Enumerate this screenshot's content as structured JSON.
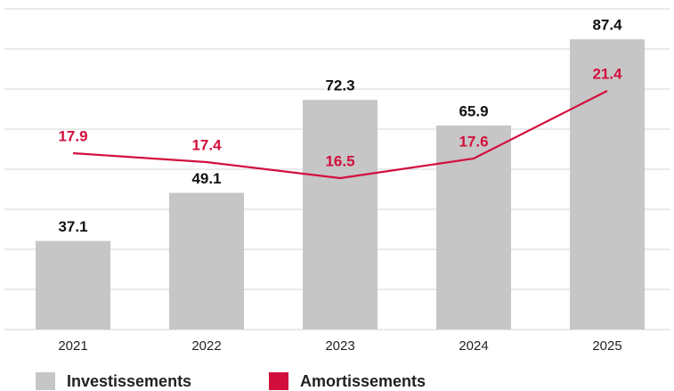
{
  "chart_data": {
    "type": "bar",
    "categories": [
      "2021",
      "2022",
      "2023",
      "2024",
      "2025"
    ],
    "series": [
      {
        "name": "Investissements",
        "type": "bar",
        "color": "#c6c6c6",
        "values": [
          37.1,
          49.1,
          72.3,
          65.9,
          87.4
        ]
      },
      {
        "name": "Amortissements",
        "type": "line",
        "axis": "y2",
        "color": "#d20f3c",
        "values": [
          17.9,
          17.4,
          16.5,
          17.6,
          21.4
        ]
      }
    ],
    "ylim": [
      15,
      95
    ],
    "yticks": [
      15,
      25,
      35,
      45,
      55,
      65,
      75,
      85,
      95
    ],
    "y2lim": [
      8,
      26
    ],
    "grid": true,
    "legend": "bottom"
  }
}
